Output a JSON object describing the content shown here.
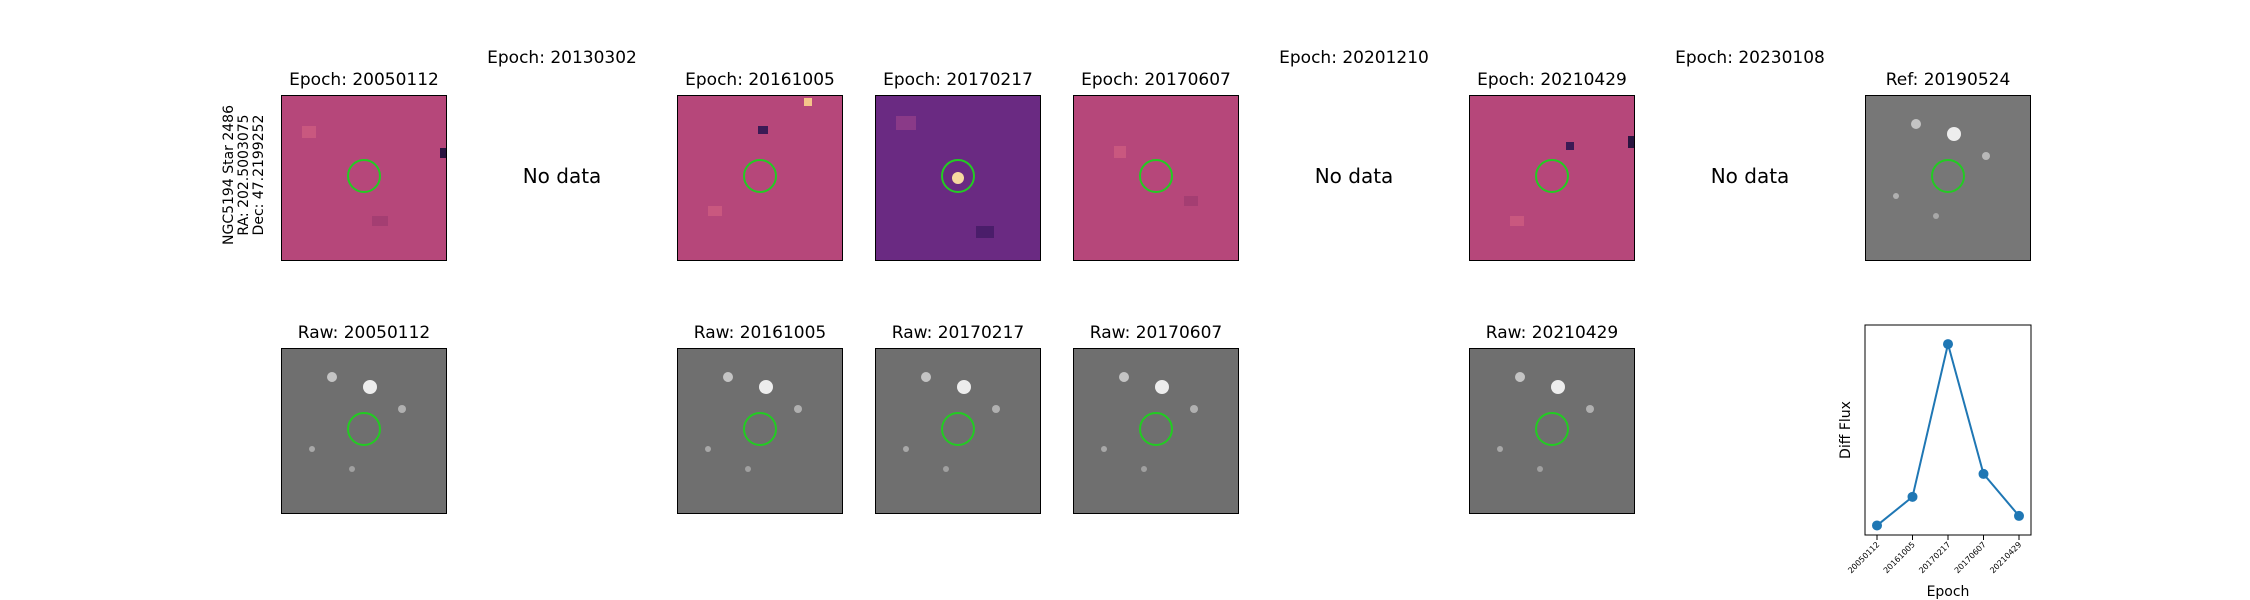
{
  "star_label": {
    "line1": "NGC5194 Star 2486",
    "line2": "RA: 202.5003075",
    "line3": "Dec: 47.2199252"
  },
  "epochs": [
    {
      "title": "Epoch: 20050112",
      "raw_title": "Raw: 20050112",
      "has_data": true,
      "diff_style": "magma"
    },
    {
      "title": "Epoch: 20130302",
      "raw_title": "",
      "has_data": false,
      "no_data": "No data"
    },
    {
      "title": "Epoch: 20161005",
      "raw_title": "Raw: 20161005",
      "has_data": true,
      "diff_style": "magma"
    },
    {
      "title": "Epoch: 20170217",
      "raw_title": "Raw: 20170217",
      "has_data": true,
      "diff_style": "magma-dark"
    },
    {
      "title": "Epoch: 20170607",
      "raw_title": "Raw: 20170607",
      "has_data": true,
      "diff_style": "magma"
    },
    {
      "title": "Epoch: 20201210",
      "raw_title": "",
      "has_data": false,
      "no_data": "No data"
    },
    {
      "title": "Epoch: 20210429",
      "raw_title": "Raw: 20210429",
      "has_data": true,
      "diff_style": "magma"
    },
    {
      "title": "Epoch: 20230108",
      "raw_title": "",
      "has_data": false,
      "no_data": "No data"
    }
  ],
  "reference": {
    "title": "Ref: 20190524"
  },
  "colors": {
    "aperture_circle": "#22cc22",
    "line": "#1f77b4",
    "diff_bg": "#b6477a",
    "diff_bg_dark": "#6a2a82"
  },
  "chart_data": {
    "type": "line",
    "title": "",
    "xlabel": "Epoch",
    "ylabel": "Diff Flux",
    "categories": [
      "20050112",
      "20161005",
      "20170217",
      "20170607",
      "20210429"
    ],
    "values": [
      0.05,
      0.2,
      1.0,
      0.32,
      0.1
    ],
    "ylim": [
      0,
      1.1
    ],
    "grid": false,
    "y_ticks_shown": false
  }
}
